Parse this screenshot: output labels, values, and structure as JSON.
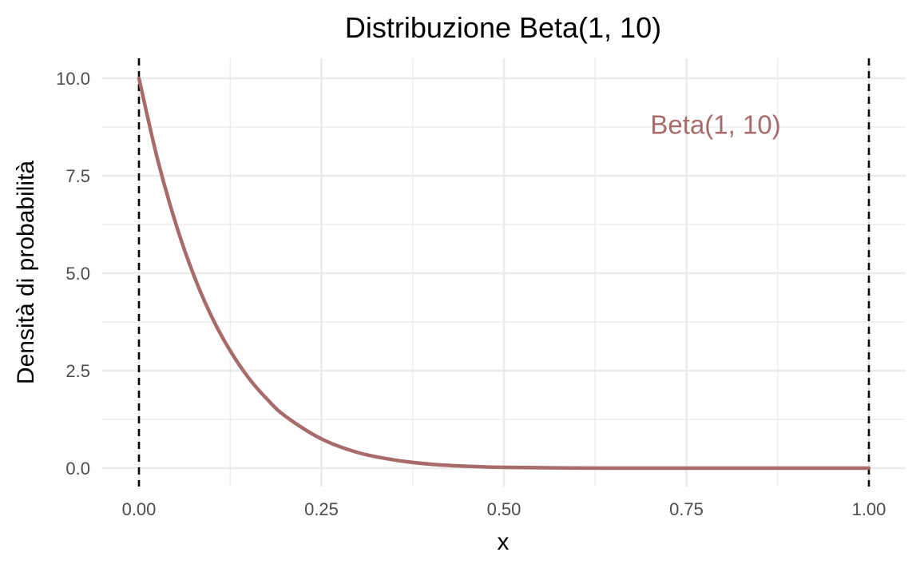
{
  "chart_data": {
    "type": "line",
    "title": "Distribuzione Beta(1, 10)",
    "xlabel": "x",
    "ylabel": "Densità di probabilità",
    "xlim": [
      0,
      1
    ],
    "ylim": [
      0,
      10
    ],
    "x_ticks": [
      0,
      0.25,
      0.5,
      0.75,
      1
    ],
    "x_tick_labels": [
      "0.00",
      "0.25",
      "0.50",
      "0.75",
      "1.00"
    ],
    "y_ticks": [
      0,
      2.5,
      5,
      7.5,
      10
    ],
    "y_tick_labels": [
      "0.0",
      "2.5",
      "5.0",
      "7.5",
      "10.0"
    ],
    "grid": true,
    "legend": "none",
    "series": [
      {
        "color": "#a86b6b",
        "x": [
          0,
          0.025,
          0.05,
          0.075,
          0.1,
          0.125,
          0.15,
          0.175,
          0.2,
          0.25,
          0.3,
          0.35,
          0.4,
          0.45,
          0.5,
          0.6,
          0.7,
          0.8,
          0.9,
          1.0
        ],
        "y": [
          10,
          7.96,
          6.3,
          4.95,
          3.87,
          3.01,
          2.32,
          1.78,
          1.34,
          0.75,
          0.4,
          0.21,
          0.1,
          0.05,
          0.02,
          0.003,
          0.0002,
          0,
          0,
          0
        ]
      }
    ],
    "reference_lines": [
      {
        "axis": "x",
        "value": 0,
        "style": "dashed",
        "color": "#000000"
      },
      {
        "axis": "x",
        "value": 1,
        "style": "dashed",
        "color": "#000000"
      }
    ],
    "annotations": [
      {
        "text": "Beta(1, 10)",
        "x": 0.79,
        "y": 8.8,
        "color": "#a86b6b"
      }
    ]
  }
}
